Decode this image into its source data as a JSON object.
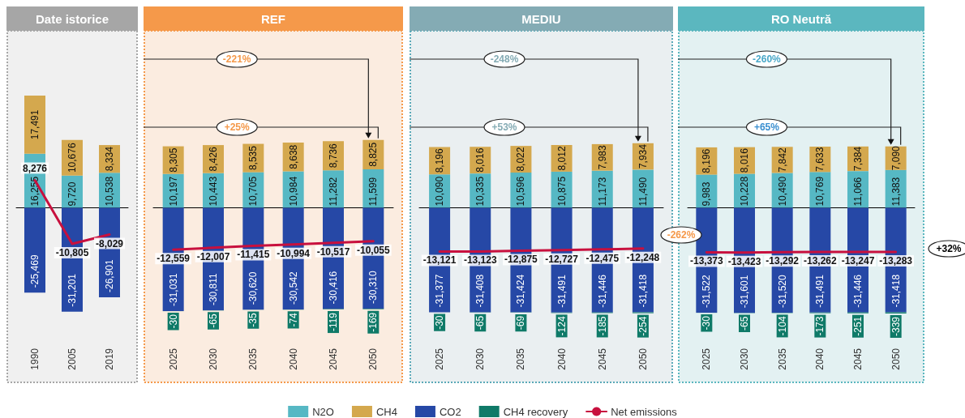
{
  "chart_data": [
    {
      "type": "bar",
      "stacked": true,
      "title": "Date istorice",
      "categories": [
        "1990",
        "2005",
        "2019"
      ],
      "legend": "bottom",
      "marker": "none",
      "series": [
        {
          "name": "N2O",
          "color": "#56b8c4",
          "values": [
            16255,
            9720,
            10538
          ],
          "value_labels": [
            "16,255",
            "9,720",
            "10,538"
          ]
        },
        {
          "name": "CH4",
          "color": "#d4a84e",
          "values": [
            17491,
            10676,
            8334
          ],
          "value_labels": [
            "17,491",
            "10,676",
            "8,334"
          ]
        },
        {
          "name": "CO2",
          "color": "#2648a6",
          "values": [
            -25469,
            -31201,
            -26901
          ],
          "value_labels": [
            "-25,469",
            "-31,201",
            "-26,901"
          ]
        },
        {
          "name": "CH4 recovery",
          "color": "#0f7a68",
          "values": [
            null,
            null,
            null
          ],
          "value_labels": [
            null,
            null,
            null
          ]
        },
        {
          "name": "Net emissions",
          "type": "line",
          "color": "#c8103e",
          "values": [
            8276,
            -10805,
            -8029
          ],
          "value_labels": [
            "8,276",
            "-10,805",
            "-8,029"
          ]
        }
      ]
    },
    {
      "type": "bar",
      "stacked": true,
      "title": "REF",
      "categories": [
        "2025",
        "2030",
        "2035",
        "2040",
        "2045",
        "2050"
      ],
      "marker": "none",
      "series": [
        {
          "color": "#56b8c4",
          "values": [
            10197,
            10443,
            10705,
            10984,
            11282,
            11599
          ],
          "value_labels": [
            "10,197",
            "10,443",
            "10,705",
            "10,984",
            "11,282",
            "11,599"
          ]
        },
        {
          "color": "#d4a84e",
          "values": [
            8305,
            8426,
            8535,
            8638,
            8736,
            8825
          ],
          "value_labels": [
            "8,305",
            "8,426",
            "8,535",
            "8,638",
            "8,736",
            "8,825"
          ]
        },
        {
          "color": "#2648a6",
          "values": [
            -31031,
            -30811,
            -30620,
            -30542,
            -30416,
            -30310
          ],
          "value_labels": [
            "-31,031",
            "-30,811",
            "-30,620",
            "-30,542",
            "-30,416",
            "-30,310"
          ]
        },
        {
          "color": "#0f7a68",
          "values": [
            -30,
            -65,
            -35,
            -74,
            -119,
            -169
          ],
          "value_labels": [
            "-30",
            "-65",
            "-35",
            "-74",
            "-119",
            "-169"
          ]
        },
        {
          "type": "line",
          "color": "#c8103e",
          "values": [
            -12559,
            -12007,
            -11415,
            -10994,
            -10517,
            -10055
          ],
          "value_labels": [
            "-12,559",
            "-12,007",
            "-11,415",
            "-10,994",
            "-10,517",
            "-10,055"
          ]
        }
      ],
      "annotations": [
        "-221%",
        "+25%"
      ]
    },
    {
      "type": "bar",
      "stacked": true,
      "title": "MEDIU",
      "categories": [
        "2025",
        "2030",
        "2035",
        "2040",
        "2045",
        "2050"
      ],
      "marker": "none",
      "series": [
        {
          "color": "#56b8c4",
          "values": [
            10090,
            10335,
            10596,
            10875,
            11173,
            11490
          ],
          "value_labels": [
            "10,090",
            "10,335",
            "10,596",
            "10,875",
            "11,173",
            "11,490"
          ]
        },
        {
          "color": "#d4a84e",
          "values": [
            8196,
            8016,
            8022,
            8012,
            7983,
            7934
          ],
          "value_labels": [
            "8,196",
            "8,016",
            "8,022",
            "8,012",
            "7,983",
            "7,934"
          ]
        },
        {
          "color": "#2648a6",
          "values": [
            -31377,
            -31408,
            -31424,
            -31491,
            -31446,
            -31418
          ],
          "value_labels": [
            "-31,377",
            "-31,408",
            "-31,424",
            "-31,491",
            "-31,446",
            "-31,418"
          ]
        },
        {
          "color": "#0f7a68",
          "values": [
            -30,
            -65,
            -69,
            -124,
            -185,
            -254
          ],
          "value_labels": [
            "-30",
            "-65",
            "-69",
            "-124",
            "-185",
            "-254"
          ]
        },
        {
          "type": "line",
          "color": "#c8103e",
          "values": [
            -13121,
            -13123,
            -12875,
            -12727,
            -12475,
            -12248
          ],
          "value_labels": [
            "-13,121",
            "-13,123",
            "-12,875",
            "-12,727",
            "-12,475",
            "-12,248"
          ]
        }
      ],
      "annotations": [
        "-248%",
        "+53%"
      ]
    },
    {
      "type": "bar",
      "stacked": true,
      "title": "RO Neutră",
      "categories": [
        "2025",
        "2030",
        "2035",
        "2040",
        "2045",
        "2050"
      ],
      "marker": "none",
      "series": [
        {
          "color": "#56b8c4",
          "values": [
            9983,
            10228,
            10490,
            10769,
            11066,
            11383
          ],
          "value_labels": [
            "9,983",
            "10,228",
            "10,490",
            "10,769",
            "11,066",
            "11,383"
          ]
        },
        {
          "color": "#d4a84e",
          "values": [
            8196,
            8016,
            7842,
            7633,
            7384,
            7090
          ],
          "value_labels": [
            "8,196",
            "8,016",
            "7,842",
            "7,633",
            "7,384",
            "7,090"
          ]
        },
        {
          "color": "#2648a6",
          "values": [
            -31522,
            -31601,
            -31520,
            -31491,
            -31446,
            -31418
          ],
          "value_labels": [
            "-31,522",
            "-31,601",
            "-31,520",
            "-31,491",
            "-31,446",
            "-31,418"
          ]
        },
        {
          "color": "#0f7a68",
          "values": [
            -30,
            -65,
            -104,
            -173,
            -251,
            -339
          ],
          "value_labels": [
            "-30",
            "-65",
            "-104",
            "-173",
            "-251",
            "-339"
          ]
        },
        {
          "type": "line",
          "color": "#c8103e",
          "values": [
            -13373,
            -13423,
            -13292,
            -13262,
            -13247,
            -13283
          ],
          "value_labels": [
            "-13,373",
            "-13,423",
            "-13,292",
            "-13,262",
            "-13,247",
            "-13,283"
          ]
        }
      ],
      "annotations": [
        "-260%",
        "+65%",
        "-262%",
        "+32%"
      ]
    }
  ]
}
